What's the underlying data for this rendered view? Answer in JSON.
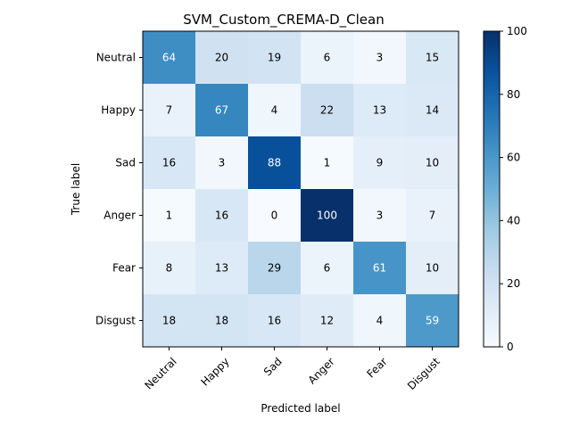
{
  "chart_data": {
    "type": "heatmap",
    "title": "SVM_Custom_CREMA-D_Clean",
    "xlabel": "Predicted label",
    "ylabel": "True label",
    "x_categories": [
      "Neutral",
      "Happy",
      "Sad",
      "Anger",
      "Fear",
      "Disgust"
    ],
    "y_categories": [
      "Neutral",
      "Happy",
      "Sad",
      "Anger",
      "Fear",
      "Disgust"
    ],
    "values": [
      [
        64,
        20,
        19,
        6,
        3,
        15
      ],
      [
        7,
        67,
        4,
        22,
        13,
        14
      ],
      [
        16,
        3,
        88,
        1,
        9,
        10
      ],
      [
        1,
        16,
        0,
        100,
        3,
        7
      ],
      [
        8,
        13,
        29,
        6,
        61,
        10
      ],
      [
        18,
        18,
        16,
        12,
        4,
        59
      ]
    ],
    "colormap": "Blues",
    "vmin": 0,
    "vmax": 100,
    "colorbar_ticks": [
      "0",
      "20",
      "40",
      "60",
      "80",
      "100"
    ],
    "colorbar_tick_values": [
      0,
      20,
      40,
      60,
      80,
      100
    ],
    "text_color_dark": "#000000",
    "text_color_light": "#ffffff"
  }
}
